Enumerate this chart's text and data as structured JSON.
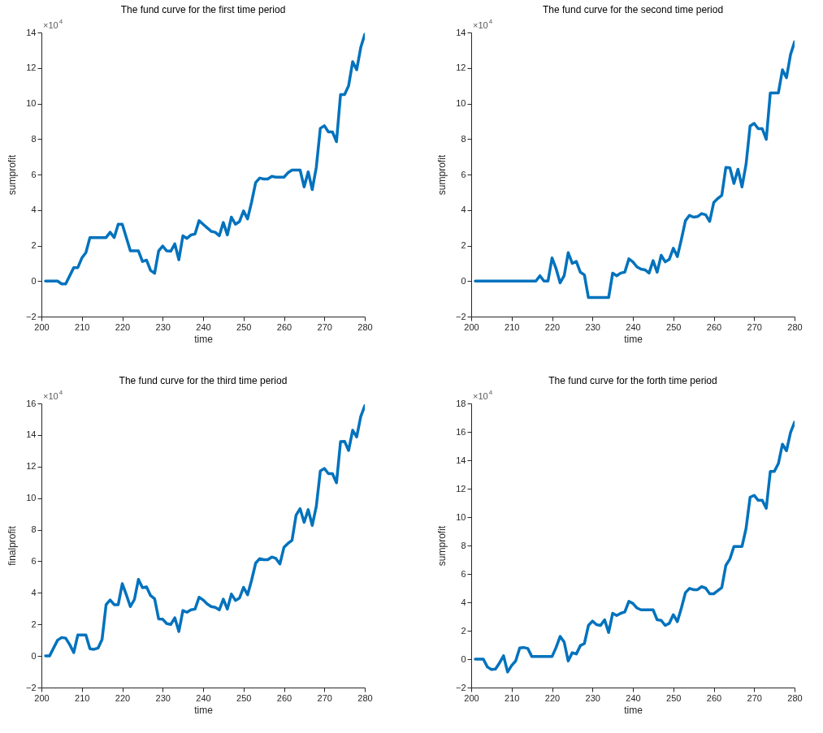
{
  "chart_data": [
    {
      "type": "line",
      "title": "The fund curve for the first time period",
      "xlabel": "time",
      "ylabel": "sumprofit",
      "annotations": [
        "×10$^{4}$"
      ],
      "xlim": [
        200,
        280
      ],
      "xticks": [
        200,
        210,
        220,
        230,
        240,
        250,
        260,
        270,
        280
      ],
      "ylim": [
        -2,
        14
      ],
      "yticks": [
        -2,
        0,
        2,
        4,
        6,
        8,
        10,
        12,
        14
      ],
      "series": [
        {
          "color": "#0072bd",
          "x": [
            201,
            204,
            205,
            206,
            208,
            209,
            210,
            211,
            212,
            216,
            217,
            218,
            219,
            220,
            222,
            224,
            225,
            226,
            227,
            228,
            229,
            230,
            231,
            232,
            233,
            234,
            235,
            236,
            237,
            238,
            239,
            240,
            241,
            242,
            243,
            244,
            245,
            246,
            247,
            248,
            249,
            250,
            251,
            252,
            253,
            254,
            255,
            256,
            257,
            258,
            260,
            261,
            262,
            264,
            265,
            266,
            267,
            268,
            269,
            270,
            271,
            272,
            273,
            274,
            275,
            276,
            277,
            278,
            279,
            280
          ],
          "values": [
            0,
            0,
            -0.16,
            -0.16,
            0.76,
            0.76,
            1.3,
            1.6,
            2.45,
            2.45,
            2.75,
            2.45,
            3.2,
            3.2,
            1.7,
            1.7,
            1.1,
            1.18,
            0.6,
            0.44,
            1.7,
            1.97,
            1.7,
            1.68,
            2.1,
            1.2,
            2.55,
            2.4,
            2.6,
            2.65,
            3.4,
            3.2,
            3.0,
            2.8,
            2.75,
            2.55,
            3.3,
            2.6,
            3.6,
            3.2,
            3.35,
            3.95,
            3.5,
            4.45,
            5.55,
            5.8,
            5.75,
            5.75,
            5.9,
            5.85,
            5.85,
            6.1,
            6.25,
            6.25,
            5.3,
            6.15,
            5.15,
            6.4,
            8.6,
            8.75,
            8.4,
            8.4,
            7.85,
            10.5,
            10.5,
            11.0,
            12.35,
            11.9,
            13.15,
            13.9
          ]
        }
      ]
    },
    {
      "type": "line",
      "title": "The fund curve for the second time period",
      "xlabel": "time",
      "ylabel": "sumprofit",
      "annotations": [
        "×10$^{4}$"
      ],
      "xlim": [
        200,
        280
      ],
      "xticks": [
        200,
        210,
        220,
        230,
        240,
        250,
        260,
        270,
        280
      ],
      "ylim": [
        -2,
        14
      ],
      "yticks": [
        -2,
        0,
        2,
        4,
        6,
        8,
        10,
        12,
        14
      ],
      "series": [
        {
          "color": "#0072bd",
          "x": [
            201,
            216,
            217,
            218,
            219,
            220,
            221,
            222,
            223,
            224,
            225,
            226,
            227,
            228,
            229,
            234,
            235,
            236,
            237,
            238,
            239,
            240,
            241,
            242,
            243,
            244,
            245,
            246,
            247,
            248,
            249,
            250,
            251,
            252,
            253,
            254,
            255,
            256,
            257,
            258,
            259,
            260,
            261,
            262,
            263,
            264,
            265,
            266,
            267,
            268,
            269,
            270,
            271,
            272,
            273,
            274,
            276,
            277,
            278,
            279,
            280
          ],
          "values": [
            0,
            0,
            0.3,
            0,
            0,
            1.3,
            0.7,
            -0.1,
            0.3,
            1.6,
            1.0,
            1.1,
            0.5,
            0.35,
            -0.93,
            -0.93,
            0.45,
            0.3,
            0.45,
            0.5,
            1.25,
            1.08,
            0.8,
            0.67,
            0.63,
            0.45,
            1.15,
            0.5,
            1.45,
            1.08,
            1.22,
            1.85,
            1.38,
            2.35,
            3.4,
            3.7,
            3.6,
            3.63,
            3.8,
            3.73,
            3.36,
            4.42,
            4.65,
            4.83,
            6.4,
            6.38,
            5.5,
            6.3,
            5.3,
            6.58,
            8.73,
            8.88,
            8.58,
            8.58,
            7.98,
            10.6,
            10.6,
            11.9,
            11.45,
            12.75,
            13.47
          ]
        }
      ]
    },
    {
      "type": "line",
      "title": "The fund curve for the third time period",
      "xlabel": "time",
      "ylabel": "finalprofit",
      "annotations": [
        "×10$^{4}$"
      ],
      "xlim": [
        200,
        280
      ],
      "xticks": [
        200,
        210,
        220,
        230,
        240,
        250,
        260,
        270,
        280
      ],
      "ylim": [
        -2,
        16
      ],
      "yticks": [
        -2,
        0,
        2,
        4,
        6,
        8,
        10,
        12,
        14,
        16
      ],
      "series": [
        {
          "color": "#0072bd",
          "x": [
            201,
            202,
            203,
            204,
            205,
            206,
            207,
            208,
            209,
            211,
            212,
            213,
            214,
            215,
            216,
            217,
            218,
            219,
            220,
            221,
            222,
            223,
            224,
            225,
            226,
            227,
            228,
            229,
            230,
            231,
            232,
            233,
            234,
            235,
            236,
            237,
            238,
            239,
            240,
            241,
            242,
            243,
            244,
            245,
            246,
            247,
            248,
            249,
            250,
            251,
            252,
            253,
            254,
            255,
            256,
            257,
            258,
            259,
            260,
            261,
            262,
            263,
            264,
            265,
            266,
            267,
            268,
            269,
            270,
            271,
            272,
            273,
            274,
            275,
            276,
            277,
            278,
            279,
            280
          ],
          "values": [
            0,
            0,
            0.5,
            1.0,
            1.17,
            1.13,
            0.72,
            0.22,
            1.33,
            1.33,
            0.45,
            0.42,
            0.5,
            1.05,
            3.25,
            3.55,
            3.25,
            3.25,
            4.58,
            3.88,
            3.13,
            3.58,
            4.85,
            4.33,
            4.38,
            3.83,
            3.63,
            2.35,
            2.33,
            2.05,
            2.0,
            2.42,
            1.55,
            2.88,
            2.77,
            2.92,
            2.97,
            3.72,
            3.55,
            3.3,
            3.13,
            3.08,
            2.92,
            3.6,
            2.97,
            3.92,
            3.52,
            3.67,
            4.35,
            3.88,
            4.8,
            5.88,
            6.17,
            6.1,
            6.1,
            6.27,
            6.18,
            5.83,
            6.88,
            7.13,
            7.33,
            8.92,
            9.33,
            8.47,
            9.27,
            8.27,
            9.47,
            11.72,
            11.88,
            11.55,
            11.55,
            10.97,
            13.58,
            13.6,
            13.02,
            14.3,
            13.88,
            15.17,
            15.85
          ]
        }
      ]
    },
    {
      "type": "line",
      "title": "The fund curve for the forth time period",
      "xlabel": "time",
      "ylabel": "sumprofit",
      "annotations": [
        "×10$^{4}$"
      ],
      "xlim": [
        200,
        280
      ],
      "xticks": [
        200,
        210,
        220,
        230,
        240,
        250,
        260,
        270,
        280
      ],
      "ylim": [
        -2,
        18
      ],
      "yticks": [
        -2,
        0,
        2,
        4,
        6,
        8,
        10,
        12,
        14,
        16,
        18
      ],
      "series": [
        {
          "color": "#0072bd",
          "x": [
            201,
            203,
            204,
            205,
            206,
            207,
            208,
            209,
            210,
            211,
            212,
            213,
            214,
            215,
            220,
            221,
            222,
            223,
            224,
            225,
            226,
            227,
            228,
            229,
            230,
            231,
            232,
            233,
            234,
            235,
            236,
            237,
            238,
            239,
            240,
            241,
            242,
            245,
            246,
            247,
            248,
            249,
            250,
            251,
            252,
            253,
            254,
            255,
            256,
            257,
            258,
            259,
            260,
            261,
            262,
            263,
            264,
            265,
            267,
            268,
            269,
            270,
            271,
            272,
            273,
            274,
            275,
            276,
            277,
            278,
            279,
            280
          ],
          "values": [
            0,
            0,
            -0.55,
            -0.73,
            -0.7,
            -0.27,
            0.24,
            -0.91,
            -0.45,
            -0.13,
            0.78,
            0.82,
            0.75,
            0.18,
            0.18,
            0.82,
            1.6,
            1.2,
            -0.13,
            0.45,
            0.36,
            0.95,
            1.1,
            2.37,
            2.68,
            2.43,
            2.37,
            2.77,
            1.88,
            3.23,
            3.07,
            3.23,
            3.32,
            4.07,
            3.92,
            3.6,
            3.47,
            3.47,
            2.77,
            2.73,
            2.37,
            2.52,
            3.13,
            2.64,
            3.6,
            4.68,
            4.98,
            4.89,
            4.89,
            5.1,
            5.0,
            4.6,
            4.6,
            4.82,
            5.04,
            6.6,
            7.05,
            7.93,
            7.93,
            9.2,
            11.4,
            11.53,
            11.18,
            11.18,
            10.62,
            13.22,
            13.22,
            13.77,
            15.13,
            14.67,
            15.95,
            16.68
          ]
        }
      ]
    }
  ]
}
